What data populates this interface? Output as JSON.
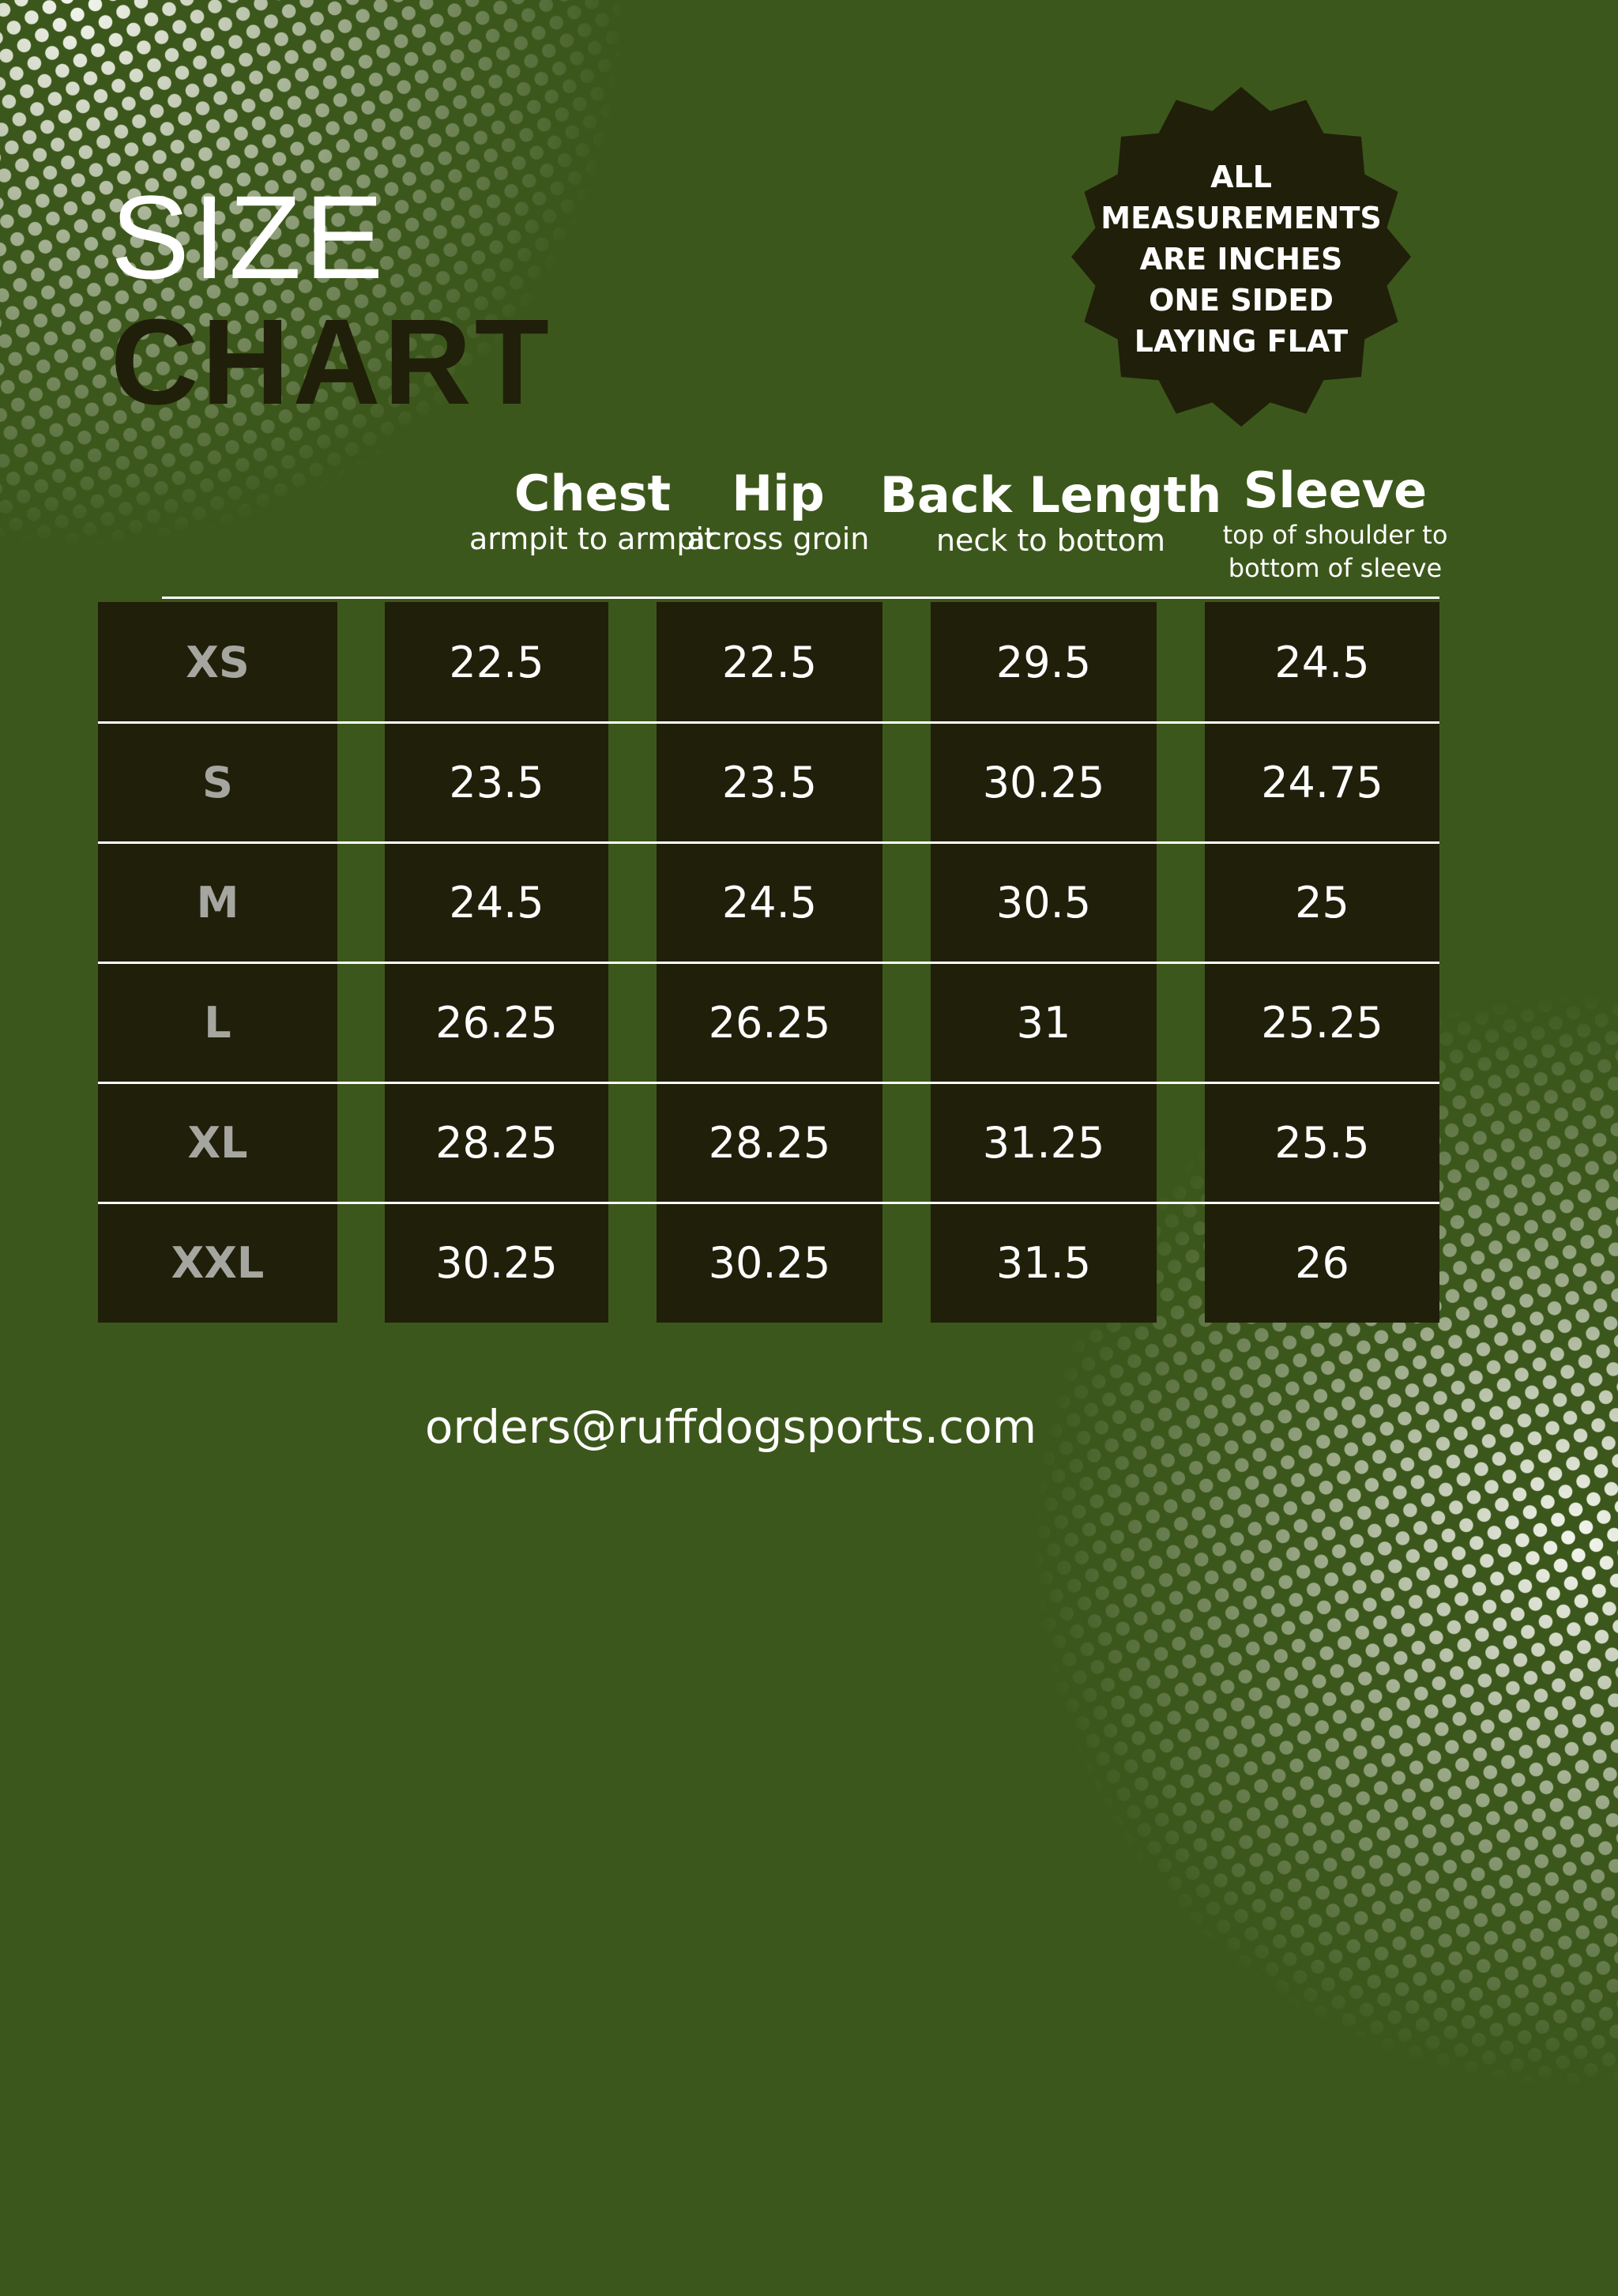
{
  "title": {
    "line1": "SIZE",
    "line2": "CHART"
  },
  "badge": {
    "lines": [
      "ALL",
      "MEASUREMENTS",
      "ARE INCHES",
      "ONE SIDED",
      "LAYING FLAT"
    ]
  },
  "columns": [
    {
      "title": "Chest",
      "subtitle": "armpit to armpit"
    },
    {
      "title": "Hip",
      "subtitle": "across groin"
    },
    {
      "title": "Back Length",
      "subtitle": "neck to bottom"
    },
    {
      "title": "Sleeve",
      "subtitle": "top of shoulder to bottom of sleeve"
    }
  ],
  "sizes": [
    "XS",
    "S",
    "M",
    "L",
    "XL",
    "XXL"
  ],
  "rows": [
    [
      "22.5",
      "22.5",
      "29.5",
      "24.5"
    ],
    [
      "23.5",
      "23.5",
      "30.25",
      "24.75"
    ],
    [
      "24.5",
      "24.5",
      "30.5",
      "25"
    ],
    [
      "26.25",
      "26.25",
      "31",
      "25.25"
    ],
    [
      "28.25",
      "28.25",
      "31.25",
      "25.5"
    ],
    [
      "30.25",
      "30.25",
      "31.5",
      "26"
    ]
  ],
  "email": "orders@ruffdogsports.com",
  "colors": {
    "background": "#3c571b",
    "dark": "#201f0a",
    "text": "#ffffff",
    "size_label": "#a6a6a0"
  }
}
